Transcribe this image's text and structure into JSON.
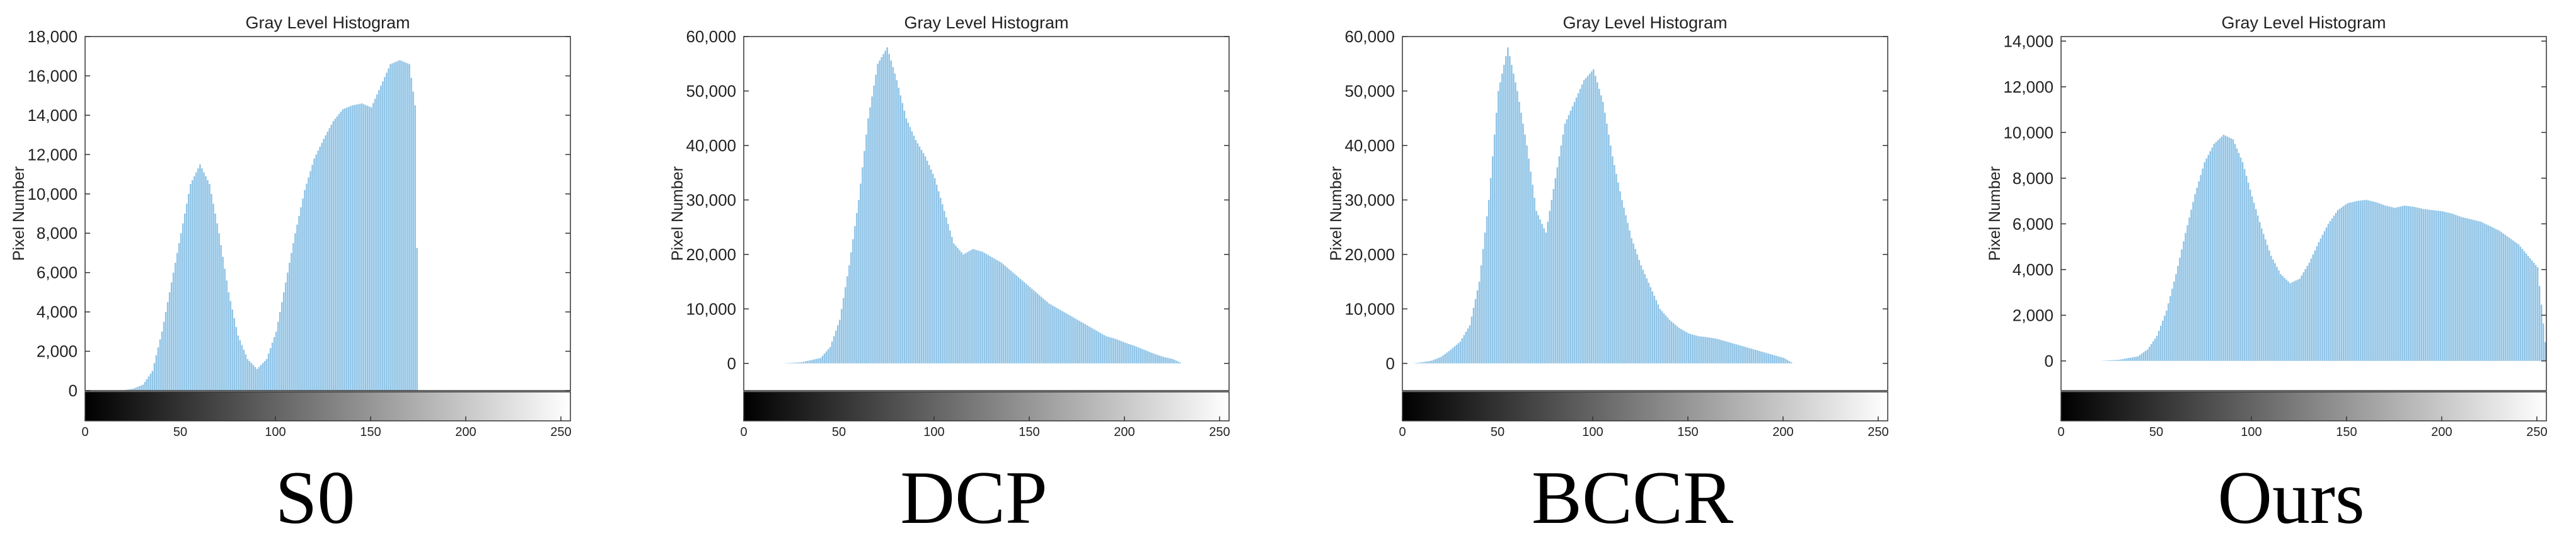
{
  "chart_data": [
    {
      "type": "bar",
      "title": "Gray Level Histogram",
      "ylabel": "Pixel Number",
      "xlabel": "",
      "caption": "S0",
      "xlim": [
        0,
        255
      ],
      "ylim": [
        0,
        18000
      ],
      "yticks": [
        0,
        2000,
        4000,
        6000,
        8000,
        10000,
        12000,
        14000,
        16000,
        18000
      ],
      "ytick_labels": [
        "0",
        "2,000",
        "4,000",
        "6,000",
        "8,000",
        "10,000",
        "12,000",
        "14,000",
        "16,000",
        "18,000"
      ],
      "xticks": [
        0,
        50,
        100,
        150,
        200,
        250
      ],
      "xtick_labels": [
        "0",
        "50",
        "100",
        "150",
        "200",
        "250"
      ],
      "grid": false,
      "bar_color": "#8ec3e6",
      "x": [
        0,
        5,
        10,
        15,
        20,
        25,
        30,
        35,
        40,
        45,
        50,
        55,
        60,
        65,
        70,
        75,
        80,
        85,
        90,
        95,
        100,
        105,
        110,
        115,
        120,
        125,
        130,
        135,
        140,
        145,
        150,
        155,
        160,
        165,
        170,
        173,
        175,
        180,
        255
      ],
      "values": [
        0,
        0,
        0,
        0,
        20,
        100,
        300,
        1000,
        3000,
        5500,
        8000,
        10500,
        11500,
        10500,
        8000,
        5000,
        2800,
        1600,
        1100,
        1600,
        3000,
        5500,
        8000,
        10200,
        11800,
        12800,
        13700,
        14300,
        14500,
        14600,
        14400,
        15500,
        16600,
        16800,
        16600,
        14500,
        0,
        0,
        0
      ]
    },
    {
      "type": "bar",
      "title": "Gray Level Histogram",
      "ylabel": "Pixel Number",
      "xlabel": "",
      "caption": "DCP",
      "xlim": [
        0,
        255
      ],
      "ylim": [
        -5000,
        60000
      ],
      "yticks": [
        0,
        10000,
        20000,
        30000,
        40000,
        50000,
        60000
      ],
      "ytick_labels": [
        "0",
        "10,000",
        "20,000",
        "30,000",
        "40,000",
        "50,000",
        "60,000"
      ],
      "xticks": [
        0,
        50,
        100,
        150,
        200,
        250
      ],
      "xtick_labels": [
        "0",
        "50",
        "100",
        "150",
        "200",
        "250"
      ],
      "grid": false,
      "bar_color": "#8ec3e6",
      "x": [
        0,
        20,
        30,
        40,
        45,
        50,
        55,
        60,
        65,
        70,
        75,
        80,
        85,
        90,
        95,
        100,
        105,
        110,
        115,
        120,
        125,
        130,
        135,
        140,
        145,
        150,
        155,
        160,
        165,
        170,
        175,
        180,
        185,
        190,
        195,
        200,
        205,
        210,
        215,
        220,
        225,
        230,
        255
      ],
      "values": [
        0,
        0,
        200,
        1000,
        3000,
        8000,
        18000,
        30000,
        45000,
        55000,
        58000,
        52000,
        45000,
        41000,
        38000,
        34000,
        28000,
        22000,
        20000,
        21000,
        20500,
        19500,
        18500,
        17000,
        15500,
        14000,
        12500,
        11000,
        10000,
        9000,
        8000,
        7000,
        6000,
        5000,
        4500,
        3800,
        3200,
        2500,
        1800,
        1200,
        800,
        0,
        0
      ]
    },
    {
      "type": "bar",
      "title": "Gray Level Histogram",
      "ylabel": "Pixel Number",
      "xlabel": "",
      "caption": "BCCR",
      "xlim": [
        0,
        255
      ],
      "ylim": [
        -5000,
        60000
      ],
      "yticks": [
        0,
        10000,
        20000,
        30000,
        40000,
        50000,
        60000
      ],
      "ytick_labels": [
        "0",
        "10,000",
        "20,000",
        "30,000",
        "40,000",
        "50,000",
        "60,000"
      ],
      "xticks": [
        0,
        50,
        100,
        150,
        200,
        250
      ],
      "xtick_labels": [
        "0",
        "50",
        "100",
        "150",
        "200",
        "250"
      ],
      "grid": false,
      "bar_color": "#8ec3e6",
      "x": [
        0,
        5,
        10,
        15,
        20,
        25,
        30,
        35,
        40,
        45,
        50,
        55,
        60,
        65,
        70,
        75,
        80,
        85,
        90,
        95,
        100,
        105,
        110,
        115,
        120,
        125,
        130,
        135,
        140,
        145,
        150,
        155,
        160,
        165,
        170,
        175,
        180,
        185,
        190,
        195,
        200,
        205,
        210,
        255
      ],
      "values": [
        0,
        0,
        200,
        500,
        1200,
        2500,
        4000,
        7000,
        15000,
        30000,
        50000,
        58000,
        50000,
        40000,
        28000,
        24000,
        34000,
        44000,
        48000,
        52000,
        54000,
        48000,
        38000,
        30000,
        23000,
        18000,
        14000,
        10000,
        8000,
        6500,
        5500,
        5000,
        4800,
        4500,
        4000,
        3500,
        3000,
        2500,
        2000,
        1500,
        1000,
        0,
        0,
        0
      ]
    },
    {
      "type": "bar",
      "title": "Gray Level Histogram",
      "ylabel": "Pixel Number",
      "xlabel": "",
      "caption": "Ours",
      "xlim": [
        0,
        255
      ],
      "ylim": [
        -1300,
        14200
      ],
      "yticks": [
        0,
        2000,
        4000,
        6000,
        8000,
        10000,
        12000,
        14000
      ],
      "ytick_labels": [
        "0",
        "2,000",
        "4,000",
        "6,000",
        "8,000",
        "10,000",
        "12,000",
        "14,000"
      ],
      "xticks": [
        0,
        50,
        100,
        150,
        200,
        250
      ],
      "xtick_labels": [
        "0",
        "50",
        "100",
        "150",
        "200",
        "250"
      ],
      "grid": false,
      "bar_color": "#8ec3e6",
      "x": [
        0,
        20,
        30,
        40,
        45,
        50,
        55,
        60,
        65,
        70,
        75,
        80,
        85,
        90,
        95,
        100,
        105,
        110,
        115,
        120,
        125,
        130,
        135,
        140,
        145,
        150,
        155,
        160,
        165,
        170,
        175,
        180,
        185,
        190,
        195,
        200,
        205,
        210,
        215,
        220,
        225,
        230,
        235,
        240,
        245,
        250,
        255
      ],
      "values": [
        0,
        0,
        50,
        200,
        500,
        1100,
        2200,
        3800,
        5600,
        7300,
        8700,
        9500,
        9900,
        9700,
        8700,
        7200,
        5800,
        4600,
        3800,
        3400,
        3600,
        4300,
        5200,
        6000,
        6600,
        6900,
        7000,
        7050,
        6950,
        6800,
        6700,
        6800,
        6750,
        6650,
        6600,
        6550,
        6450,
        6300,
        6200,
        6100,
        5900,
        5700,
        5400,
        5100,
        4600,
        4100,
        0
      ]
    }
  ]
}
